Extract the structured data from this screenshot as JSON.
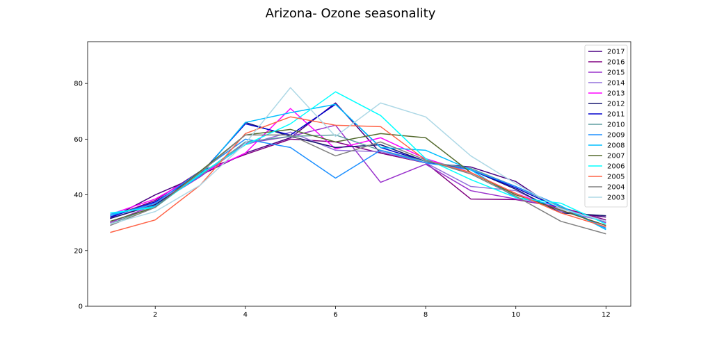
{
  "chart_data": {
    "type": "line",
    "title": "Arizona- Ozone seasonality",
    "xlabel": "",
    "ylabel": "",
    "x": [
      1,
      2,
      3,
      4,
      5,
      6,
      7,
      8,
      9,
      10,
      11,
      12
    ],
    "xlim": [
      0.5,
      12.55
    ],
    "ylim": [
      0,
      95
    ],
    "xticks": [
      2,
      4,
      6,
      8,
      10,
      12
    ],
    "yticks": [
      0,
      20,
      40,
      60,
      80
    ],
    "grid": false,
    "legend_position": "top-right",
    "series": [
      {
        "name": "2017",
        "color": "#4b0082",
        "values": [
          31.5,
          40.0,
          47.0,
          55.0,
          60.5,
          73.0,
          55.0,
          51.5,
          50.0,
          44.8,
          34.0,
          32.0
        ]
      },
      {
        "name": "2016",
        "color": "#800080",
        "values": [
          32.0,
          38.0,
          48.5,
          54.5,
          60.0,
          59.0,
          55.0,
          51.5,
          38.5,
          38.3,
          35.5,
          31.0
        ]
      },
      {
        "name": "2015",
        "color": "#9932cc",
        "values": [
          30.0,
          36.5,
          46.5,
          58.5,
          61.0,
          65.0,
          44.5,
          51.0,
          41.5,
          38.5,
          35.5,
          30.0
        ]
      },
      {
        "name": "2014",
        "color": "#9370db",
        "values": [
          31.5,
          37.0,
          47.0,
          58.0,
          62.5,
          56.0,
          55.5,
          51.5,
          43.0,
          41.5,
          34.0,
          30.5
        ]
      },
      {
        "name": "2013",
        "color": "#ff00ff",
        "values": [
          33.0,
          38.5,
          47.5,
          55.0,
          71.0,
          56.5,
          60.5,
          53.0,
          48.0,
          40.5,
          34.5,
          29.0
        ]
      },
      {
        "name": "2012",
        "color": "#191970",
        "values": [
          31.5,
          36.5,
          47.0,
          66.0,
          61.0,
          57.0,
          58.0,
          52.0,
          49.0,
          42.0,
          33.5,
          32.5
        ]
      },
      {
        "name": "2011",
        "color": "#0000cd",
        "values": [
          32.0,
          37.5,
          47.5,
          65.5,
          61.5,
          72.5,
          57.0,
          52.0,
          49.0,
          42.5,
          35.0,
          30.5
        ]
      },
      {
        "name": "2010",
        "color": "#5f9ea0",
        "values": [
          29.5,
          36.0,
          47.0,
          59.0,
          61.0,
          61.5,
          56.0,
          52.0,
          49.5,
          43.0,
          35.5,
          28.0
        ]
      },
      {
        "name": "2009",
        "color": "#1e90ff",
        "values": [
          32.5,
          37.0,
          48.5,
          60.0,
          57.0,
          46.0,
          56.0,
          51.5,
          49.0,
          43.0,
          36.0,
          28.0
        ]
      },
      {
        "name": "2008",
        "color": "#00bfff",
        "values": [
          33.0,
          36.0,
          47.0,
          66.0,
          69.5,
          72.5,
          57.0,
          56.0,
          49.0,
          39.0,
          36.0,
          27.5
        ]
      },
      {
        "name": "2007",
        "color": "#556b2f",
        "values": [
          30.5,
          35.5,
          48.5,
          61.5,
          63.5,
          59.0,
          62.0,
          60.5,
          48.0,
          40.0,
          34.5,
          29.0
        ]
      },
      {
        "name": "2006",
        "color": "#00ffff",
        "values": [
          33.5,
          35.5,
          47.5,
          58.0,
          65.5,
          77.0,
          68.5,
          53.0,
          45.5,
          39.0,
          37.0,
          29.5
        ]
      },
      {
        "name": "2005",
        "color": "#ff6347",
        "values": [
          26.5,
          31.0,
          43.5,
          62.0,
          68.0,
          65.0,
          64.5,
          52.5,
          48.0,
          40.5,
          33.5,
          28.5
        ]
      },
      {
        "name": "2004",
        "color": "#808080",
        "values": [
          29.0,
          35.5,
          48.0,
          61.5,
          61.5,
          54.0,
          59.0,
          52.5,
          47.5,
          39.5,
          30.5,
          26.0
        ]
      },
      {
        "name": "2003",
        "color": "#add8e6",
        "values": [
          29.5,
          34.0,
          43.5,
          58.5,
          78.5,
          61.0,
          73.0,
          68.0,
          54.0,
          44.0,
          35.0,
          30.5
        ]
      }
    ]
  }
}
